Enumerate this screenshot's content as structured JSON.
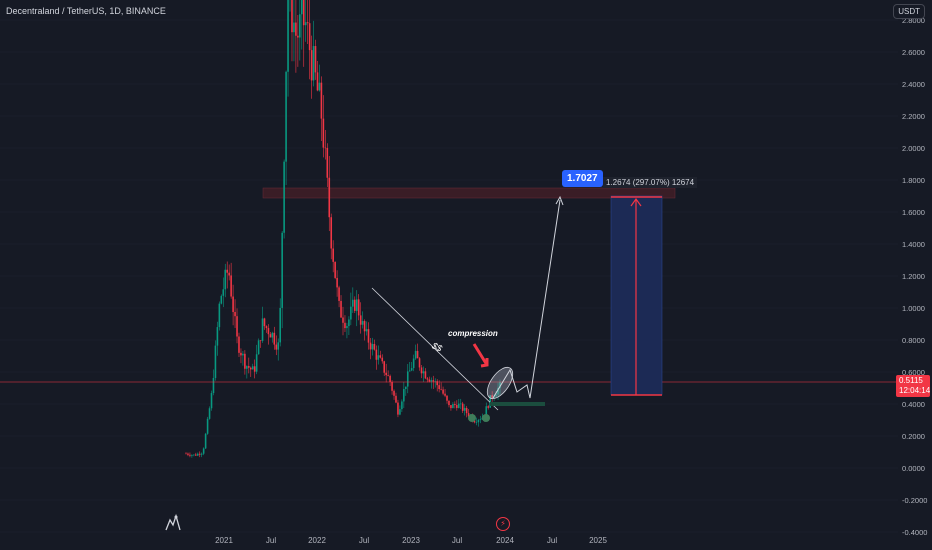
{
  "header": {
    "symbol_title": "Decentraland / TetherUS, 1D, BINANCE",
    "currency": "USDT"
  },
  "price_axis": {
    "ticks": [
      "2.8000",
      "2.6000",
      "2.4000",
      "2.2000",
      "2.0000",
      "1.8000",
      "1.6000",
      "1.4000",
      "1.2000",
      "1.0000",
      "0.8000",
      "0.6000",
      "0.4000",
      "0.2000",
      "0.0000",
      "-0.2000",
      "-0.4000"
    ]
  },
  "time_axis": {
    "ticks": [
      "2021",
      "Jul",
      "2022",
      "Jul",
      "2023",
      "Jul",
      "2024",
      "Jul",
      "2025"
    ]
  },
  "last_price": {
    "value": "0.5115",
    "countdown": "12:04:14",
    "color": "#f23645"
  },
  "target": {
    "value": "1.7027",
    "color": "#2962ff"
  },
  "measure": {
    "label": "1.2674 (297.07%) 12674"
  },
  "annotations": {
    "compression": "compression",
    "mark": "$$"
  },
  "colors": {
    "background": "#161a25",
    "up_candle": "#089981",
    "down_candle": "#f23645",
    "resistance_zone": "#3a1d26",
    "measure_box": "#1c2a55",
    "measure_arrow": "#f23645"
  },
  "icons": {
    "logo": "tradingview-logo-icon",
    "event": "lightning-event-icon"
  },
  "chart_data": {
    "type": "line",
    "title": "Decentraland / TetherUS, 1D, BINANCE",
    "xlabel": "",
    "ylabel": "",
    "x": [
      "2020-11",
      "2020-12",
      "2021-01",
      "2021-02",
      "2021-03",
      "2021-04",
      "2021-05",
      "2021-06",
      "2021-07",
      "2021-08",
      "2021-09",
      "2021-10",
      "2021-11",
      "2021-12",
      "2022-01",
      "2022-02",
      "2022-03",
      "2022-04",
      "2022-05",
      "2022-06",
      "2022-07",
      "2022-08",
      "2022-09",
      "2022-10",
      "2022-11",
      "2022-12",
      "2023-01",
      "2023-02",
      "2023-03",
      "2023-04",
      "2023-05",
      "2023-06",
      "2023-07",
      "2023-08",
      "2023-09",
      "2023-10",
      "2023-11",
      "2023-12"
    ],
    "series": [
      {
        "values": [
          0.09,
          0.08,
          0.1,
          0.45,
          1.05,
          1.25,
          0.8,
          0.65,
          0.6,
          0.9,
          0.85,
          0.75,
          3.0,
          2.7,
          2.8,
          2.5,
          2.2,
          1.5,
          1.0,
          0.9,
          1.05,
          0.85,
          0.75,
          0.65,
          0.55,
          0.35,
          0.55,
          0.7,
          0.6,
          0.55,
          0.5,
          0.38,
          0.4,
          0.35,
          0.3,
          0.32,
          0.45,
          0.51
        ]
      }
    ],
    "ylim": [
      -0.4,
      2.9
    ],
    "resistance_zone": [
      1.7,
      1.76
    ],
    "measure": {
      "from": 0.44,
      "to": 1.7027,
      "change": 1.2674,
      "percent": 297.07
    }
  }
}
